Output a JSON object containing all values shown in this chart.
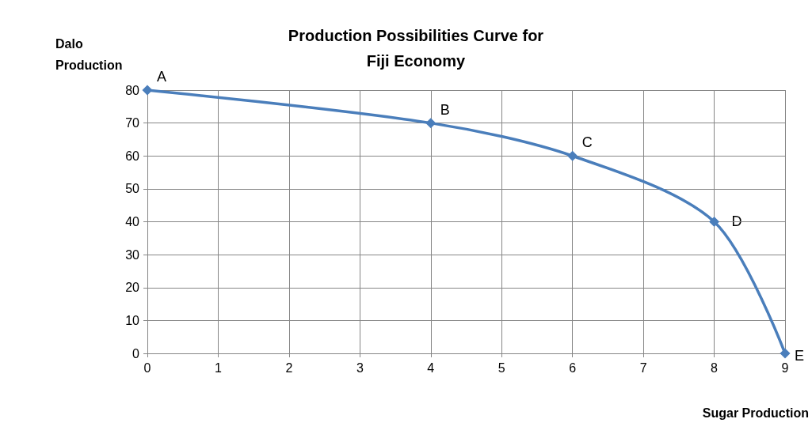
{
  "chart_data": {
    "type": "line",
    "title": "Production Possibilities Curve for\nFiji Economy",
    "xlabel": "Sugar Production",
    "ylabel": "Dalo\nProduction",
    "x": [
      0,
      4,
      6,
      8,
      9
    ],
    "series": [
      {
        "color": "#4a7ebb",
        "values": [
          80,
          70,
          60,
          40,
          0
        ]
      }
    ],
    "xlim": [
      0,
      9
    ],
    "xticks": [
      0,
      1,
      2,
      3,
      4,
      5,
      6,
      7,
      8,
      9
    ],
    "ylim": [
      0,
      80
    ],
    "yticks": [
      0,
      10,
      20,
      30,
      40,
      50,
      60,
      70,
      80
    ],
    "grid": true,
    "marker": "diamond",
    "line_style": "solid",
    "annotations": [
      {
        "text": "A",
        "x": 0,
        "y": 80
      },
      {
        "text": "B",
        "x": 4,
        "y": 70
      },
      {
        "text": "C",
        "x": 6,
        "y": 60
      },
      {
        "text": "D",
        "x": 8,
        "y": 40
      },
      {
        "text": "E",
        "x": 9,
        "y": 0
      }
    ]
  }
}
